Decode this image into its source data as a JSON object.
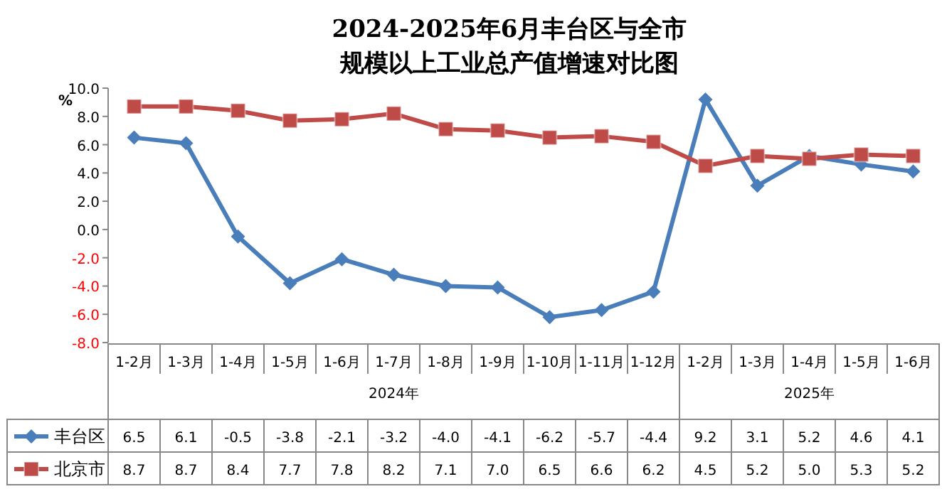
{
  "chart_data": {
    "type": "line",
    "title": "2024-2025年6月丰台区与全市规模以上工业总产值增速对比图",
    "ylabel": "%",
    "categories": [
      "1-2月",
      "1-3月",
      "1-4月",
      "1-5月",
      "1-6月",
      "1-7月",
      "1-8月",
      "1-9月",
      "1-10月",
      "1-11月",
      "1-12月",
      "1-2月",
      "1-3月",
      "1-4月",
      "1-5月",
      "1-6月"
    ],
    "annotations": [
      "2024年",
      "2025年"
    ],
    "series": [
      {
        "name": "丰台区",
        "color": "#4a7ebb",
        "marker": "diamond",
        "values": [
          6.5,
          6.1,
          -0.5,
          -3.8,
          -2.1,
          -3.2,
          -4.0,
          -4.1,
          -6.2,
          -5.7,
          -4.4,
          9.2,
          3.1,
          5.2,
          4.6,
          4.1
        ],
        "value_labels": [
          "6.5",
          "6.1",
          "-0.5",
          "-3.8",
          "-2.1",
          "-3.2",
          "-4.0",
          "-4.1",
          "-6.2",
          "-5.7",
          "-4.4",
          "9.2",
          "3.1",
          "5.2",
          "4.6",
          "4.1"
        ]
      },
      {
        "name": "北京市",
        "color": "#be4b48",
        "marker": "square",
        "values": [
          8.7,
          8.7,
          8.4,
          7.7,
          7.8,
          8.2,
          7.1,
          7.0,
          6.5,
          6.6,
          6.2,
          4.5,
          5.2,
          5.0,
          5.3,
          5.2
        ],
        "value_labels": [
          "8.7",
          "8.7",
          "8.4",
          "7.7",
          "7.8",
          "8.2",
          "7.1",
          "7.0",
          "6.5",
          "6.6",
          "6.2",
          "4.5",
          "5.2",
          "5.0",
          "5.3",
          "5.2"
        ]
      }
    ],
    "ylim": [
      -8,
      10
    ],
    "yticks": [
      {
        "value": -8,
        "label": "-8.0"
      },
      {
        "value": -6,
        "label": "-6.0"
      },
      {
        "value": -4,
        "label": "-4.0"
      },
      {
        "value": -2,
        "label": "-2.0"
      },
      {
        "value": 0,
        "label": "0.0"
      },
      {
        "value": 2,
        "label": "2.0"
      },
      {
        "value": 4,
        "label": "4.0"
      },
      {
        "value": 6,
        "label": "6.0"
      },
      {
        "value": 8,
        "label": "8.0"
      },
      {
        "value": 10,
        "label": "10.0"
      }
    ],
    "legend": "bottom",
    "grid": false
  }
}
